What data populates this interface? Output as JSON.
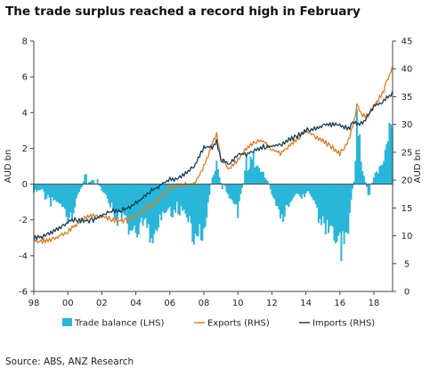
{
  "title": "The trade surplus reached a record high in February",
  "source": "Source: ABS, ANZ Research",
  "colors": {
    "balance": "#29b6d8",
    "exports": "#e07b1f",
    "imports": "#163d5c",
    "axis": "#444444"
  },
  "chart_data": {
    "type": "bar+line",
    "title": "The trade surplus reached a record high in February",
    "xlabel": "",
    "ylabel_left": "AUD bn",
    "ylabel_right": "AUD bn",
    "x_range": [
      1998,
      2019.1
    ],
    "x_tick_values": [
      1998,
      2000,
      2002,
      2004,
      2006,
      2008,
      2010,
      2012,
      2014,
      2016,
      2018
    ],
    "x_tick_labels": [
      "98",
      "00",
      "02",
      "04",
      "06",
      "08",
      "10",
      "12",
      "14",
      "16",
      "18"
    ],
    "ylim_left": [
      -6,
      8
    ],
    "yticks_left": [
      -6,
      -4,
      -2,
      0,
      2,
      4,
      6,
      8
    ],
    "ylim_right": [
      0,
      45
    ],
    "yticks_right": [
      0,
      5,
      10,
      15,
      20,
      25,
      30,
      35,
      40,
      45
    ],
    "grid": false,
    "legend": "bottom",
    "series": [
      {
        "name": "Trade balance (LHS)",
        "type": "bar",
        "axis": "left",
        "points": [
          [
            1998.0,
            -0.4
          ],
          [
            1998.5,
            -0.3
          ],
          [
            1999.0,
            -0.7
          ],
          [
            1999.5,
            -1.1
          ],
          [
            2000.0,
            -1.5
          ],
          [
            2000.5,
            -0.8
          ],
          [
            2001.0,
            0.3
          ],
          [
            2001.5,
            0.6
          ],
          [
            2002.0,
            -0.3
          ],
          [
            2002.5,
            -0.9
          ],
          [
            2003.0,
            -1.8
          ],
          [
            2003.5,
            -2.2
          ],
          [
            2004.0,
            -2.0
          ],
          [
            2004.5,
            -2.3
          ],
          [
            2005.0,
            -2.4
          ],
          [
            2005.5,
            -1.9
          ],
          [
            2006.0,
            -1.2
          ],
          [
            2006.5,
            -1.0
          ],
          [
            2007.0,
            -1.8
          ],
          [
            2007.5,
            -2.5
          ],
          [
            2008.0,
            -2.8
          ],
          [
            2008.5,
            0.5
          ],
          [
            2008.75,
            1.6
          ],
          [
            2009.0,
            0.4
          ],
          [
            2009.5,
            -0.8
          ],
          [
            2010.0,
            -1.2
          ],
          [
            2010.5,
            1.2
          ],
          [
            2011.0,
            1.5
          ],
          [
            2011.5,
            1.0
          ],
          [
            2012.0,
            -0.6
          ],
          [
            2012.5,
            -1.6
          ],
          [
            2013.0,
            -1.2
          ],
          [
            2013.5,
            -0.4
          ],
          [
            2014.0,
            -0.2
          ],
          [
            2014.5,
            -1.0
          ],
          [
            2015.0,
            -2.0
          ],
          [
            2015.5,
            -2.6
          ],
          [
            2016.0,
            -3.5
          ],
          [
            2016.5,
            -2.2
          ],
          [
            2016.9,
            0.9
          ],
          [
            2017.0,
            3.6
          ],
          [
            2017.3,
            1.3
          ],
          [
            2017.7,
            -0.3
          ],
          [
            2018.0,
            0.3
          ],
          [
            2018.5,
            1.6
          ],
          [
            2018.8,
            3.0
          ],
          [
            2019.1,
            4.6
          ]
        ]
      },
      {
        "name": "Exports (RHS)",
        "type": "line",
        "axis": "right",
        "points": [
          [
            1998.0,
            9.2
          ],
          [
            1998.5,
            9.0
          ],
          [
            1999.0,
            9.3
          ],
          [
            1999.5,
            10.0
          ],
          [
            2000.0,
            10.8
          ],
          [
            2000.5,
            12.0
          ],
          [
            2001.0,
            13.2
          ],
          [
            2001.5,
            13.6
          ],
          [
            2002.0,
            13.4
          ],
          [
            2002.5,
            13.0
          ],
          [
            2003.0,
            12.7
          ],
          [
            2003.5,
            12.8
          ],
          [
            2004.0,
            13.6
          ],
          [
            2004.5,
            14.6
          ],
          [
            2005.0,
            15.8
          ],
          [
            2005.5,
            17.0
          ],
          [
            2006.0,
            18.5
          ],
          [
            2006.5,
            19.0
          ],
          [
            2007.0,
            19.2
          ],
          [
            2007.5,
            19.5
          ],
          [
            2008.0,
            22.5
          ],
          [
            2008.5,
            26.5
          ],
          [
            2008.75,
            28.2
          ],
          [
            2009.0,
            24.0
          ],
          [
            2009.5,
            22.0
          ],
          [
            2010.0,
            23.5
          ],
          [
            2010.5,
            25.8
          ],
          [
            2011.0,
            26.8
          ],
          [
            2011.5,
            27.0
          ],
          [
            2012.0,
            25.5
          ],
          [
            2012.5,
            24.8
          ],
          [
            2013.0,
            26.0
          ],
          [
            2013.5,
            27.5
          ],
          [
            2014.0,
            28.8
          ],
          [
            2014.5,
            28.0
          ],
          [
            2015.0,
            27.0
          ],
          [
            2015.5,
            26.0
          ],
          [
            2016.0,
            24.8
          ],
          [
            2016.5,
            27.0
          ],
          [
            2016.9,
            31.5
          ],
          [
            2017.0,
            33.5
          ],
          [
            2017.3,
            31.5
          ],
          [
            2017.7,
            31.5
          ],
          [
            2018.0,
            33.5
          ],
          [
            2018.5,
            35.5
          ],
          [
            2018.8,
            38.0
          ],
          [
            2019.1,
            40.2
          ]
        ]
      },
      {
        "name": "Imports (RHS)",
        "type": "line",
        "axis": "right",
        "points": [
          [
            1998.0,
            9.6
          ],
          [
            1998.5,
            9.8
          ],
          [
            1999.0,
            10.5
          ],
          [
            1999.5,
            11.3
          ],
          [
            2000.0,
            12.5
          ],
          [
            2000.5,
            12.9
          ],
          [
            2001.0,
            12.7
          ],
          [
            2001.5,
            12.8
          ],
          [
            2002.0,
            13.7
          ],
          [
            2002.5,
            14.3
          ],
          [
            2003.0,
            14.6
          ],
          [
            2003.5,
            15.0
          ],
          [
            2004.0,
            15.8
          ],
          [
            2004.5,
            17.0
          ],
          [
            2005.0,
            18.3
          ],
          [
            2005.5,
            19.2
          ],
          [
            2006.0,
            20.2
          ],
          [
            2006.5,
            20.2
          ],
          [
            2007.0,
            21.4
          ],
          [
            2007.5,
            22.8
          ],
          [
            2008.0,
            25.8
          ],
          [
            2008.5,
            26.0
          ],
          [
            2008.75,
            27.0
          ],
          [
            2009.0,
            23.6
          ],
          [
            2009.5,
            22.8
          ],
          [
            2010.0,
            24.7
          ],
          [
            2010.5,
            24.6
          ],
          [
            2011.0,
            25.3
          ],
          [
            2011.5,
            26.0
          ],
          [
            2012.0,
            26.1
          ],
          [
            2012.5,
            26.4
          ],
          [
            2013.0,
            27.2
          ],
          [
            2013.5,
            27.9
          ],
          [
            2014.0,
            29.0
          ],
          [
            2014.5,
            29.2
          ],
          [
            2015.0,
            29.8
          ],
          [
            2015.5,
            29.9
          ],
          [
            2016.0,
            30.0
          ],
          [
            2016.5,
            29.2
          ],
          [
            2016.9,
            30.6
          ],
          [
            2017.0,
            29.9
          ],
          [
            2017.3,
            30.2
          ],
          [
            2017.7,
            31.8
          ],
          [
            2018.0,
            33.2
          ],
          [
            2018.5,
            34.0
          ],
          [
            2018.8,
            35.0
          ],
          [
            2019.1,
            35.6
          ]
        ]
      }
    ]
  }
}
